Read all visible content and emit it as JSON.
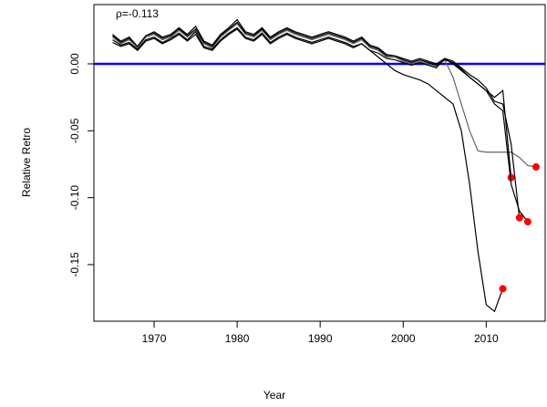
{
  "chart_data": {
    "type": "line",
    "annotation": "ρ=-0.113",
    "xlabel": "Year",
    "ylabel": "Relative Retro",
    "xlim": [
      1962.75,
      2017.1
    ],
    "ylim": [
      -0.1923,
      0.0443
    ],
    "xticks": [
      1970,
      1980,
      1990,
      2000,
      2010
    ],
    "yticks": [
      {
        "value": 0,
        "label": "0.00"
      },
      -0.05,
      {
        "value": -0.1,
        "label": "-0.10"
      },
      -0.15
    ],
    "hline": 0,
    "hline_color": "#0000ff",
    "marker_color": "#ff0000",
    "x": [
      1965,
      1966,
      1967,
      1968,
      1969,
      1970,
      1971,
      1972,
      1973,
      1974,
      1975,
      1976,
      1977,
      1978,
      1979,
      1980,
      1981,
      1982,
      1983,
      1984,
      1985,
      1986,
      1987,
      1988,
      1989,
      1990,
      1991,
      1992,
      1993,
      1994,
      1995,
      1996,
      1997,
      1998,
      1999,
      2000,
      2001,
      2002,
      2003,
      2004,
      2005,
      2006,
      2007,
      2008,
      2009,
      2010,
      2011,
      2012,
      2013,
      2014,
      2015,
      2016
    ],
    "series": [
      {
        "color": "#000000",
        "values": [
          0.018,
          0.014,
          0.016,
          0.011,
          0.018,
          0.02,
          0.016,
          0.019,
          0.023,
          0.018,
          0.024,
          0.013,
          0.011,
          0.018,
          0.023,
          0.027,
          0.02,
          0.018,
          0.023,
          0.016,
          0.02,
          0.023,
          0.02,
          0.018,
          0.016,
          0.018,
          0.02,
          0.018,
          0.016,
          0.013,
          0.015,
          0.01,
          0.005,
          0.0,
          -0.005,
          -0.008,
          -0.01,
          -0.012,
          -0.015,
          -0.02,
          -0.025,
          -0.03,
          -0.05,
          -0.09,
          -0.14,
          -0.18,
          -0.185,
          -0.168,
          null,
          null,
          null,
          null
        ]
      },
      {
        "color": "#666666",
        "values": [
          0.02,
          0.015,
          0.018,
          0.012,
          0.02,
          0.022,
          0.018,
          0.02,
          0.025,
          0.02,
          0.025,
          0.015,
          0.012,
          0.02,
          0.025,
          0.03,
          0.022,
          0.02,
          0.025,
          0.018,
          0.022,
          0.025,
          0.022,
          0.02,
          0.018,
          0.02,
          0.022,
          0.02,
          0.018,
          0.015,
          0.018,
          0.012,
          0.01,
          0.005,
          0.005,
          0.002,
          0.0,
          0.002,
          0.0,
          -0.002,
          0.003,
          -0.01,
          -0.03,
          -0.05,
          -0.065,
          -0.066,
          -0.066,
          -0.066,
          -0.066,
          -0.07,
          -0.076,
          -0.077
        ]
      },
      {
        "color": "#000000",
        "values": [
          0.022,
          0.017,
          0.02,
          0.013,
          0.021,
          0.024,
          0.02,
          0.022,
          0.027,
          0.022,
          0.028,
          0.017,
          0.014,
          0.022,
          0.027,
          0.033,
          0.024,
          0.022,
          0.027,
          0.02,
          0.024,
          0.027,
          0.024,
          0.022,
          0.02,
          0.022,
          0.024,
          0.022,
          0.02,
          0.017,
          0.02,
          0.014,
          0.012,
          0.007,
          0.006,
          0.004,
          0.002,
          0.004,
          0.002,
          0.0,
          0.004,
          0.0,
          -0.005,
          -0.01,
          -0.015,
          -0.02,
          -0.025,
          -0.02,
          -0.085,
          null,
          null,
          null
        ]
      },
      {
        "color": "#000000",
        "values": [
          0.016,
          0.013,
          0.015,
          0.01,
          0.017,
          0.019,
          0.015,
          0.018,
          0.022,
          0.017,
          0.022,
          0.012,
          0.01,
          0.017,
          0.022,
          0.026,
          0.019,
          0.017,
          0.022,
          0.015,
          0.019,
          0.022,
          0.019,
          0.017,
          0.015,
          0.017,
          0.019,
          0.017,
          0.015,
          0.012,
          0.015,
          0.01,
          0.008,
          0.004,
          0.003,
          0.001,
          -0.001,
          0.001,
          -0.001,
          -0.003,
          0.004,
          0.002,
          -0.003,
          -0.008,
          -0.012,
          -0.018,
          -0.028,
          -0.03,
          -0.06,
          -0.115,
          null,
          null
        ]
      },
      {
        "color": "#000000",
        "values": [
          0.021,
          0.016,
          0.019,
          0.013,
          0.021,
          0.023,
          0.019,
          0.021,
          0.026,
          0.021,
          0.026,
          0.016,
          0.013,
          0.021,
          0.026,
          0.031,
          0.023,
          0.021,
          0.026,
          0.019,
          0.023,
          0.026,
          0.023,
          0.021,
          0.019,
          0.021,
          0.023,
          0.021,
          0.019,
          0.016,
          0.019,
          0.013,
          0.011,
          0.006,
          0.006,
          0.003,
          0.001,
          0.003,
          0.001,
          -0.001,
          0.003,
          0.001,
          -0.004,
          -0.01,
          -0.015,
          -0.02,
          -0.03,
          -0.035,
          -0.09,
          -0.11,
          -0.118,
          null
        ]
      }
    ]
  }
}
